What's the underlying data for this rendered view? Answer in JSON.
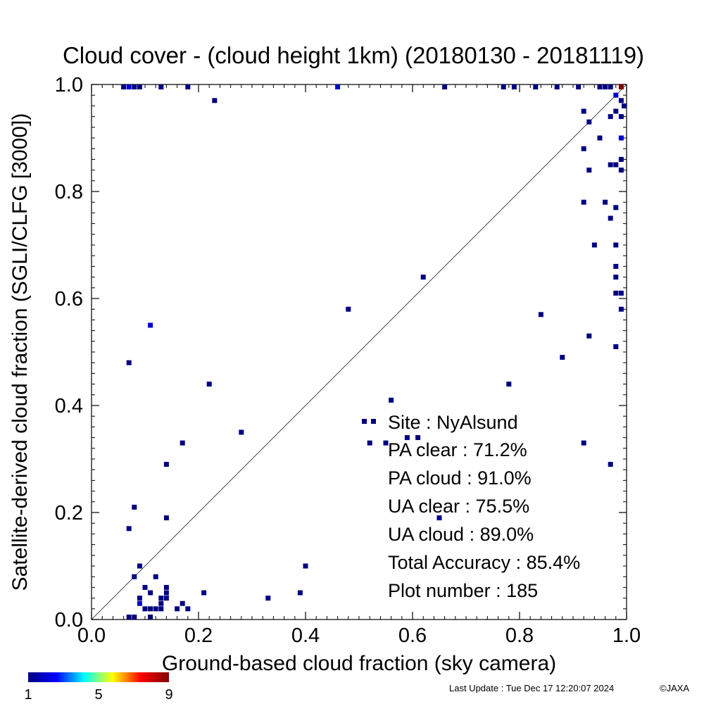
{
  "chart_data": {
    "type": "heatmap",
    "title": "Cloud cover - (cloud height 1km)  (20180130 - 20181119)",
    "xlabel": "Ground-based cloud fraction (sky camera)",
    "ylabel": "Satellite-derived cloud fraction (SGLI/CLFG [3000])",
    "xlim": [
      0,
      1
    ],
    "ylim": [
      0,
      1
    ],
    "x_ticks": [
      "0.0",
      "0.2",
      "0.4",
      "0.6",
      "0.8",
      "1.0"
    ],
    "y_ticks": [
      "0.0",
      "0.2",
      "0.4",
      "0.6",
      "0.8",
      "1.0"
    ],
    "reference_line": "1:1 diagonal",
    "colorbar": {
      "min": 1,
      "max": 9,
      "ticks": [
        "1",
        "5",
        "9"
      ],
      "colors": [
        "#00007f",
        "#0000ff",
        "#00ffff",
        "#ffff00",
        "#ff0000",
        "#7f0000"
      ]
    },
    "stats": {
      "site": "Site : NyAlsund",
      "pa_clear": "PA clear :  71.2%",
      "pa_cloud": "PA cloud :  91.0%",
      "ua_clear": "UA clear :  75.5%",
      "ua_cloud": "UA cloud :  89.0%",
      "total_accuracy": "Total Accuracy :  85.4%",
      "plot_number": "Plot number :       185"
    },
    "points": [
      [
        0.06,
        1.0,
        1
      ],
      [
        0.07,
        1.0,
        2
      ],
      [
        0.08,
        1.0,
        1
      ],
      [
        0.09,
        1.0,
        1
      ],
      [
        0.13,
        1.0,
        1
      ],
      [
        0.18,
        1.0,
        1
      ],
      [
        0.46,
        1.0,
        2
      ],
      [
        0.66,
        1.0,
        1
      ],
      [
        0.77,
        1.0,
        1
      ],
      [
        0.79,
        1.0,
        1
      ],
      [
        0.83,
        1.0,
        1
      ],
      [
        0.87,
        1.0,
        1
      ],
      [
        0.91,
        1.0,
        1
      ],
      [
        0.95,
        1.0,
        1
      ],
      [
        0.96,
        1.0,
        1
      ],
      [
        0.97,
        1.0,
        1
      ],
      [
        0.99,
        1.0,
        9
      ],
      [
        0.23,
        0.97,
        1
      ],
      [
        0.98,
        0.98,
        2
      ],
      [
        0.99,
        0.97,
        1
      ],
      [
        1.0,
        0.96,
        1
      ],
      [
        0.98,
        0.95,
        1
      ],
      [
        0.92,
        0.95,
        1
      ],
      [
        0.99,
        0.94,
        1
      ],
      [
        0.97,
        0.94,
        1
      ],
      [
        0.93,
        0.93,
        1
      ],
      [
        0.95,
        0.9,
        1
      ],
      [
        0.99,
        0.9,
        2
      ],
      [
        0.92,
        0.88,
        1
      ],
      [
        0.97,
        0.85,
        1
      ],
      [
        0.98,
        0.85,
        1
      ],
      [
        0.99,
        0.86,
        1
      ],
      [
        0.93,
        0.84,
        1
      ],
      [
        0.99,
        0.84,
        1
      ],
      [
        0.92,
        0.78,
        1
      ],
      [
        0.96,
        0.78,
        1
      ],
      [
        0.98,
        0.77,
        1
      ],
      [
        0.97,
        0.75,
        1
      ],
      [
        0.94,
        0.7,
        1
      ],
      [
        0.98,
        0.7,
        1
      ],
      [
        0.98,
        0.66,
        1
      ],
      [
        0.98,
        0.64,
        1
      ],
      [
        0.98,
        0.61,
        1
      ],
      [
        0.99,
        0.61,
        1
      ],
      [
        0.99,
        0.58,
        1
      ],
      [
        0.62,
        0.64,
        1
      ],
      [
        0.48,
        0.58,
        1
      ],
      [
        0.84,
        0.57,
        1
      ],
      [
        0.11,
        0.55,
        2
      ],
      [
        0.07,
        0.48,
        1
      ],
      [
        0.93,
        0.53,
        1
      ],
      [
        0.98,
        0.51,
        1
      ],
      [
        0.88,
        0.49,
        1
      ],
      [
        0.22,
        0.44,
        1
      ],
      [
        0.78,
        0.44,
        1
      ],
      [
        0.56,
        0.41,
        1
      ],
      [
        0.28,
        0.35,
        1
      ],
      [
        0.17,
        0.33,
        1
      ],
      [
        0.52,
        0.33,
        1
      ],
      [
        0.55,
        0.33,
        1
      ],
      [
        0.59,
        0.34,
        1
      ],
      [
        0.61,
        0.34,
        1
      ],
      [
        0.92,
        0.33,
        1
      ],
      [
        0.65,
        0.19,
        1
      ],
      [
        0.14,
        0.29,
        1
      ],
      [
        0.97,
        0.29,
        1
      ],
      [
        0.08,
        0.21,
        1
      ],
      [
        0.07,
        0.17,
        1
      ],
      [
        0.14,
        0.19,
        1
      ],
      [
        0.09,
        0.1,
        1
      ],
      [
        0.4,
        0.1,
        1
      ],
      [
        0.08,
        0.08,
        1
      ],
      [
        0.12,
        0.08,
        1
      ],
      [
        0.1,
        0.06,
        1
      ],
      [
        0.14,
        0.06,
        1
      ],
      [
        0.14,
        0.05,
        1
      ],
      [
        0.11,
        0.05,
        1
      ],
      [
        0.21,
        0.05,
        1
      ],
      [
        0.39,
        0.05,
        1
      ],
      [
        0.09,
        0.04,
        1
      ],
      [
        0.09,
        0.03,
        2
      ],
      [
        0.13,
        0.04,
        1
      ],
      [
        0.14,
        0.04,
        1
      ],
      [
        0.33,
        0.04,
        1
      ],
      [
        0.17,
        0.03,
        1
      ],
      [
        0.13,
        0.03,
        1
      ],
      [
        0.1,
        0.02,
        1
      ],
      [
        0.11,
        0.02,
        1
      ],
      [
        0.12,
        0.02,
        1
      ],
      [
        0.13,
        0.02,
        1
      ],
      [
        0.16,
        0.02,
        1
      ],
      [
        0.18,
        0.02,
        1
      ],
      [
        0.07,
        0.0,
        1
      ],
      [
        0.08,
        0.0,
        1
      ],
      [
        0.11,
        0.0,
        1
      ]
    ]
  },
  "footer": {
    "last_update": "Last Update : Tue Dec 17 12:20:07 2024",
    "copyright": "©JAXA"
  }
}
